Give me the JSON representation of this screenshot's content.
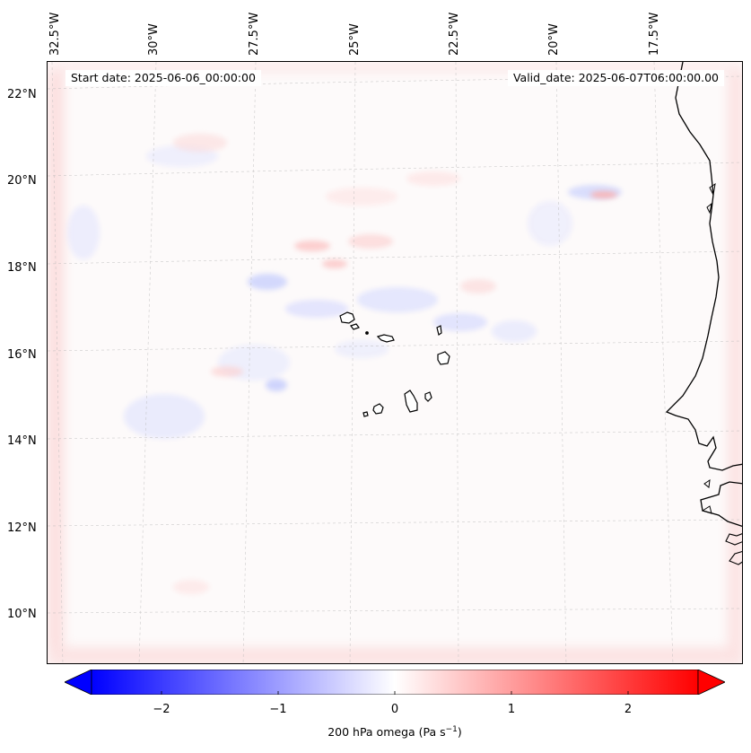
{
  "header": {
    "start_date": "Start date: 2025-06-06_00:00:00",
    "valid_date": "Valid_date: 2025-06-07T06:00:00.00"
  },
  "longitude_labels": [
    "32.5°W",
    "30°W",
    "27.5°W",
    "25°W",
    "22.5°W",
    "20°W",
    "17.5°W"
  ],
  "latitude_labels": [
    "22°N",
    "20°N",
    "18°N",
    "16°N",
    "14°N",
    "12°N",
    "10°N"
  ],
  "colorbar": {
    "label": "200 hPa omega (Pa s",
    "label_sup": "−1",
    "label_close": ")",
    "ticks": [
      "−2",
      "−1",
      "0",
      "1",
      "2"
    ],
    "range": [
      -2.6,
      2.6
    ],
    "low_color": "#0000ff",
    "mid_color": "#ffffff",
    "high_color": "#ff0000"
  },
  "map": {
    "background_color": "#fdfafa",
    "coast_color": "#000000",
    "grid_color": "#b0b0b0"
  }
}
